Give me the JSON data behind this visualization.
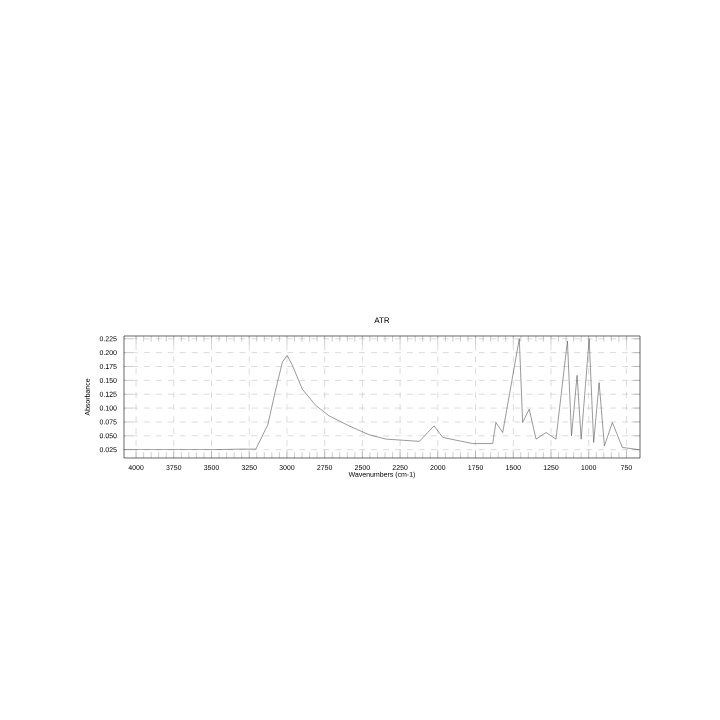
{
  "chart_data": {
    "type": "line",
    "title": "ATR",
    "xlabel": "Wavenumbers (cm-1)",
    "ylabel": "Absorbance",
    "x": [
      4080,
      3500,
      3300,
      3206,
      3127,
      3074,
      3030,
      2999,
      2964,
      2898,
      2810,
      2721,
      2589,
      2456,
      2343,
      2122,
      2025,
      1967,
      1769,
      1636,
      1615,
      1570,
      1460,
      1438,
      1394,
      1349,
      1283,
      1217,
      1141,
      1114,
      1077,
      1050,
      997,
      967,
      931,
      896,
      843,
      777,
      666
    ],
    "values": [
      0.025,
      0.025,
      0.026,
      0.026,
      0.07,
      0.134,
      0.183,
      0.195,
      0.177,
      0.134,
      0.105,
      0.086,
      0.068,
      0.052,
      0.044,
      0.04,
      0.068,
      0.047,
      0.036,
      0.036,
      0.074,
      0.056,
      0.225,
      0.074,
      0.098,
      0.044,
      0.056,
      0.044,
      0.221,
      0.05,
      0.159,
      0.044,
      0.225,
      0.038,
      0.146,
      0.032,
      0.074,
      0.029,
      0.025
    ],
    "color": "#555555",
    "xlim": [
      4080,
      660
    ],
    "ylim": [
      0.01,
      0.23
    ],
    "xticks": [
      4000,
      3750,
      3500,
      3250,
      3000,
      2750,
      2500,
      2250,
      2000,
      1750,
      1500,
      1250,
      1000,
      750
    ],
    "yticks": [
      0.025,
      {
        "value": 0.05,
        "label": "0.050"
      },
      0.075,
      {
        "value": 0.1,
        "label": "0.100"
      },
      0.125,
      {
        "value": 0.15,
        "label": "0.150"
      },
      0.175,
      {
        "value": 0.2,
        "label": "0.200"
      },
      0.225
    ],
    "grid": true,
    "line_style": "solid",
    "marker": "none"
  }
}
